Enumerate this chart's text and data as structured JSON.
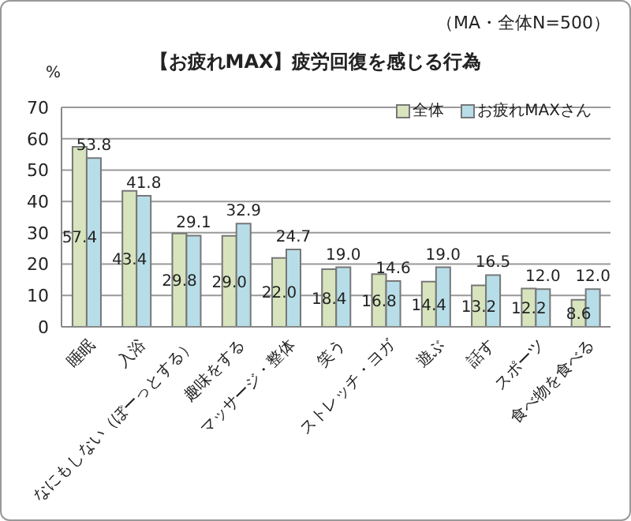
{
  "chart_data": {
    "type": "bar",
    "title": "【お疲れMAX】疲労回復を感じる行為",
    "subtitle": "（MA・全体N=500）",
    "ylabel": "%",
    "categories": [
      "睡眠",
      "入浴",
      "なにもしない（ぼーっとする）",
      "趣味をする",
      "マッサージ・整体",
      "笑う",
      "ストレッチ・ヨガ",
      "遊ぶ",
      "話す",
      "スポーツ",
      "食べ物を食べる"
    ],
    "series": [
      {
        "name": "全体",
        "color": "#d7e4bd",
        "values": [
          57.4,
          43.4,
          29.8,
          29.0,
          22.0,
          18.4,
          16.8,
          14.4,
          13.2,
          12.2,
          8.6
        ],
        "value_labels": [
          "57.4",
          "43.4",
          "29.8",
          "29.0",
          "22.0",
          "18.4",
          "16.8",
          "14.4",
          "13.2",
          "12.2",
          "8.6"
        ]
      },
      {
        "name": "お疲れMAXさん",
        "color": "#b7dee8",
        "values": [
          53.8,
          41.8,
          29.1,
          32.9,
          24.7,
          19.0,
          14.6,
          19.0,
          16.5,
          12.0,
          12.0
        ],
        "value_labels": [
          "53.8",
          "41.8",
          "29.1",
          "32.9",
          "24.7",
          "19.0",
          "14.6",
          "19.0",
          "16.5",
          "12.0",
          "12.0"
        ]
      }
    ],
    "ylim": [
      0,
      70
    ],
    "yticks": [
      0,
      10,
      20,
      30,
      40,
      50,
      60,
      70
    ],
    "grid": "y",
    "legend": "top right"
  }
}
